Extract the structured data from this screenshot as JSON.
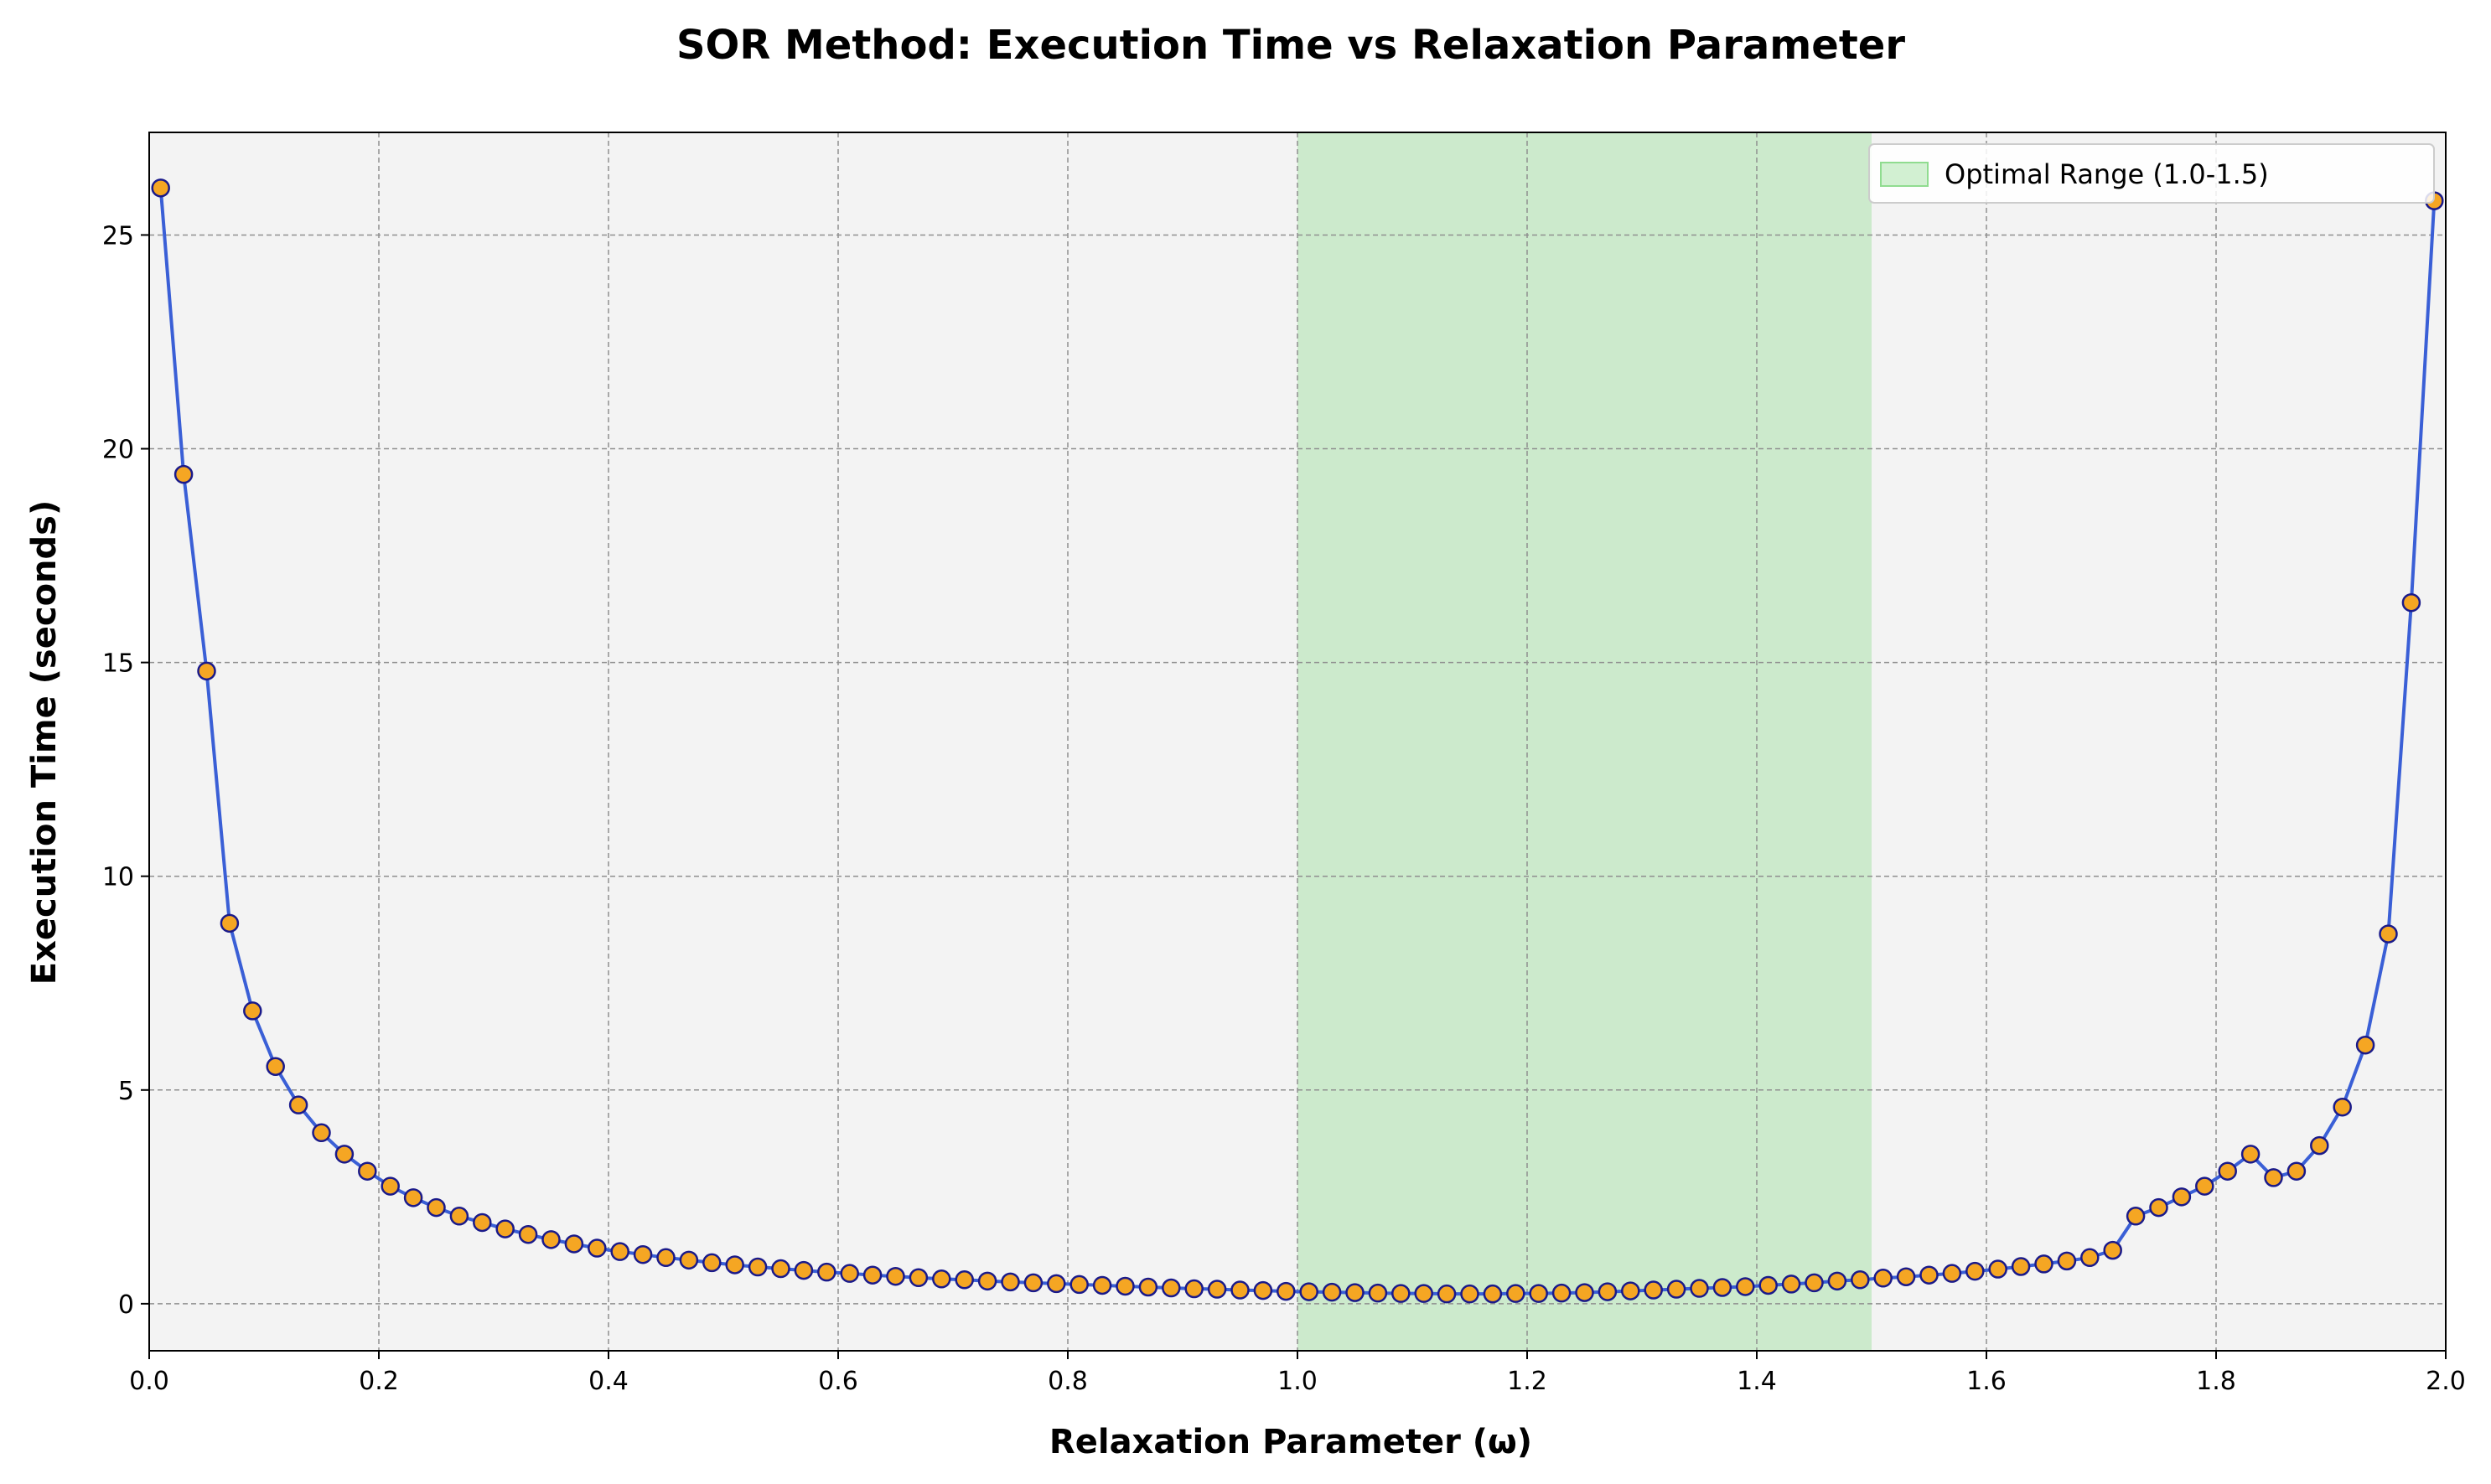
{
  "chart_data": {
    "type": "line",
    "title": "SOR Method: Execution Time vs Relaxation Parameter",
    "xlabel": "Relaxation Parameter (ω)",
    "ylabel": "Execution Time (seconds)",
    "xlim": [
      0,
      2.0
    ],
    "ylim": [
      -1.1,
      27.4
    ],
    "xticks": [
      0,
      0.2,
      0.4,
      0.6,
      0.8,
      1.0,
      1.2,
      1.4,
      1.6,
      1.8,
      2.0
    ],
    "xtick_labels": [
      "0.0",
      "0.2",
      "0.4",
      "0.6",
      "0.8",
      "1.0",
      "1.2",
      "1.4",
      "1.6",
      "1.8",
      "2.0"
    ],
    "yticks": [
      0,
      5,
      10,
      15,
      20,
      25
    ],
    "ytick_labels": [
      "0",
      "5",
      "10",
      "15",
      "20",
      "25"
    ],
    "grid": true,
    "legend_position": "top-right",
    "background_color": "#f3f3f3",
    "shaded_region": {
      "x_start": 1.0,
      "x_end": 1.5,
      "label": "Optimal Range (1.0-1.5)",
      "color": "#90dc90"
    },
    "series": [
      {
        "line_color": "#3a5fd6",
        "marker_face": "#f5a623",
        "marker_edge": "#1a1a8a",
        "x": [
          0.01,
          0.03,
          0.05,
          0.07,
          0.09,
          0.11,
          0.13,
          0.15,
          0.17,
          0.19,
          0.21,
          0.23,
          0.25,
          0.27,
          0.29,
          0.31,
          0.33,
          0.35,
          0.37,
          0.39,
          0.41,
          0.43,
          0.45,
          0.47,
          0.49,
          0.51,
          0.53,
          0.55,
          0.57,
          0.59,
          0.61,
          0.63,
          0.65,
          0.67,
          0.69,
          0.71,
          0.73,
          0.75,
          0.77,
          0.79,
          0.81,
          0.83,
          0.85,
          0.87,
          0.89,
          0.91,
          0.93,
          0.95,
          0.97,
          0.99,
          1.01,
          1.03,
          1.05,
          1.07,
          1.09,
          1.11,
          1.13,
          1.15,
          1.17,
          1.19,
          1.21,
          1.23,
          1.25,
          1.27,
          1.29,
          1.31,
          1.33,
          1.35,
          1.37,
          1.39,
          1.41,
          1.43,
          1.45,
          1.47,
          1.49,
          1.51,
          1.53,
          1.55,
          1.57,
          1.59,
          1.61,
          1.63,
          1.65,
          1.67,
          1.69,
          1.71,
          1.73,
          1.75,
          1.77,
          1.79,
          1.81,
          1.83,
          1.85,
          1.87,
          1.89,
          1.91,
          1.93,
          1.95,
          1.97,
          1.99
        ],
        "y": [
          26.1,
          19.4,
          14.8,
          8.9,
          6.85,
          5.55,
          4.65,
          4.0,
          3.5,
          3.1,
          2.75,
          2.48,
          2.25,
          2.05,
          1.9,
          1.75,
          1.62,
          1.5,
          1.4,
          1.3,
          1.22,
          1.15,
          1.08,
          1.02,
          0.96,
          0.91,
          0.86,
          0.82,
          0.78,
          0.74,
          0.71,
          0.67,
          0.64,
          0.61,
          0.58,
          0.56,
          0.53,
          0.51,
          0.49,
          0.47,
          0.45,
          0.43,
          0.41,
          0.39,
          0.37,
          0.35,
          0.34,
          0.32,
          0.31,
          0.29,
          0.28,
          0.27,
          0.26,
          0.25,
          0.24,
          0.24,
          0.23,
          0.23,
          0.23,
          0.24,
          0.24,
          0.25,
          0.26,
          0.28,
          0.3,
          0.32,
          0.34,
          0.36,
          0.38,
          0.4,
          0.43,
          0.46,
          0.49,
          0.53,
          0.56,
          0.6,
          0.63,
          0.67,
          0.71,
          0.76,
          0.81,
          0.87,
          0.93,
          1.0,
          1.08,
          1.25,
          2.05,
          2.25,
          2.5,
          2.75,
          3.1,
          3.5,
          2.95,
          3.1,
          3.7,
          4.6,
          6.05,
          8.65,
          16.4,
          25.8
        ]
      }
    ]
  }
}
